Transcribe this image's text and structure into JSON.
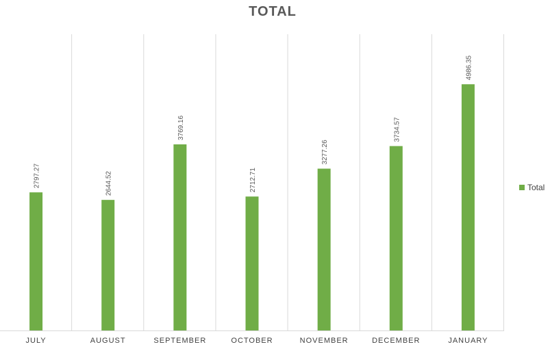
{
  "chart_data": {
    "type": "bar",
    "title": "TOTAL",
    "categories": [
      "JULY",
      "AUGUST",
      "SEPTEMBER",
      "OCTOBER",
      "NOVEMBER",
      "DECEMBER",
      "JANUARY"
    ],
    "series": [
      {
        "name": "Total",
        "values": [
          2797.27,
          2644.52,
          3769.16,
          2712.71,
          3277.26,
          3734.57,
          4986.35
        ],
        "color": "#70ad47"
      }
    ],
    "value_labels": [
      "2797.27",
      "2644.52",
      "3769.16",
      "2712.71",
      "3277.26",
      "3734.57",
      "4986.35"
    ],
    "xlabel": "",
    "ylabel": "",
    "ylim": [
      0,
      6000
    ],
    "grid": "vertical category separators",
    "legend": "right"
  }
}
